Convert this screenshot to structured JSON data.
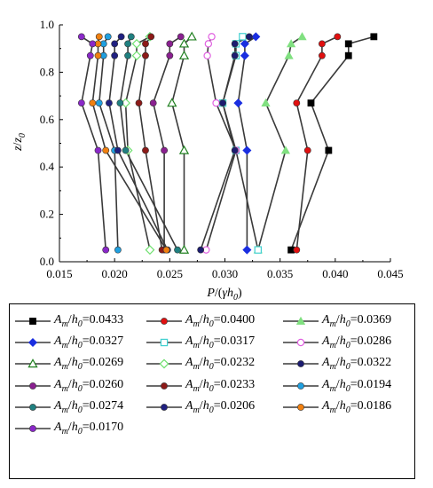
{
  "chart_data": {
    "type": "scatter",
    "xlabel": "P/(γh0)",
    "ylabel": "z/z0",
    "xlim": [
      0.015,
      0.045
    ],
    "ylim": [
      0.0,
      1.0
    ],
    "xticks": [
      "0.015",
      "0.020",
      "0.025",
      "0.030",
      "0.035",
      "0.040",
      "0.045"
    ],
    "yticks": [
      "0.0",
      "0.2",
      "0.4",
      "0.6",
      "0.8",
      "1.0"
    ],
    "grid": false,
    "legend_position": "below",
    "series": [
      {
        "name": "Am/h0=0.0433",
        "marker": "square",
        "color": "#000000",
        "x": [
          0.036,
          0.0394,
          0.0378,
          0.0412,
          0.0412,
          0.0435
        ],
        "y": [
          0.05,
          0.47,
          0.67,
          0.87,
          0.92,
          0.95
        ]
      },
      {
        "name": "Am/h0=0.0400",
        "marker": "circle",
        "color": "#e01010",
        "x": [
          0.0365,
          0.0375,
          0.0365,
          0.0388,
          0.0388,
          0.0402
        ],
        "y": [
          0.05,
          0.47,
          0.67,
          0.87,
          0.92,
          0.95
        ]
      },
      {
        "name": "Am/h0=0.0369",
        "marker": "triangle",
        "color": "#80e080",
        "x": [
          0.033,
          0.0355,
          0.0337,
          0.0358,
          0.036,
          0.037
        ],
        "y": [
          0.05,
          0.47,
          0.67,
          0.87,
          0.92,
          0.95
        ]
      },
      {
        "name": "Am/h0=0.0327",
        "marker": "diamond",
        "color": "#1a2ee0",
        "x": [
          0.032,
          0.032,
          0.0312,
          0.0318,
          0.0318,
          0.0328
        ],
        "y": [
          0.05,
          0.47,
          0.67,
          0.87,
          0.92,
          0.95
        ]
      },
      {
        "name": "Am/h0=0.0317",
        "marker": "square-open",
        "color": "#40d0d0",
        "x": [
          0.033,
          0.031,
          0.0298,
          0.031,
          0.031,
          0.0316
        ],
        "y": [
          0.05,
          0.47,
          0.67,
          0.87,
          0.92,
          0.95
        ]
      },
      {
        "name": "Am/h0=0.0286",
        "marker": "circle-open",
        "color": "#e060e0",
        "x": [
          0.0283,
          0.031,
          0.0292,
          0.0284,
          0.0285,
          0.0288
        ],
        "y": [
          0.05,
          0.47,
          0.67,
          0.87,
          0.92,
          0.95
        ]
      },
      {
        "name": "Am/h0=0.0269",
        "marker": "triangle-open",
        "color": "#208020",
        "x": [
          0.0263,
          0.0263,
          0.0252,
          0.0263,
          0.0263,
          0.027
        ],
        "y": [
          0.05,
          0.47,
          0.67,
          0.87,
          0.92,
          0.95
        ]
      },
      {
        "name": "Am/h0=0.0232",
        "marker": "diamond-open",
        "color": "#70e070",
        "x": [
          0.0232,
          0.0212,
          0.021,
          0.022,
          0.022,
          0.0232
        ],
        "y": [
          0.05,
          0.47,
          0.67,
          0.87,
          0.92,
          0.95
        ]
      },
      {
        "name": "Am/h0=0.0322",
        "marker": "circle",
        "color": "#1c1c70",
        "x": [
          0.0278,
          0.0309,
          0.0298,
          0.0309,
          0.0309,
          0.0322
        ],
        "y": [
          0.05,
          0.47,
          0.67,
          0.87,
          0.92,
          0.95
        ]
      },
      {
        "name": "Am/h0=0.0260",
        "marker": "circle",
        "color": "#8a2090",
        "x": [
          0.0245,
          0.0245,
          0.0235,
          0.025,
          0.025,
          0.026
        ],
        "y": [
          0.05,
          0.47,
          0.67,
          0.87,
          0.92,
          0.95
        ]
      },
      {
        "name": "Am/h0=0.0233",
        "marker": "circle",
        "color": "#8c1a18",
        "x": [
          0.0243,
          0.0228,
          0.0222,
          0.0228,
          0.0228,
          0.0233
        ],
        "y": [
          0.05,
          0.47,
          0.67,
          0.87,
          0.92,
          0.95
        ]
      },
      {
        "name": "Am/h0=0.0194",
        "marker": "circle",
        "color": "#20a0e0",
        "x": [
          0.0203,
          0.02,
          0.0186,
          0.019,
          0.019,
          0.0194
        ],
        "y": [
          0.05,
          0.47,
          0.67,
          0.87,
          0.92,
          0.95
        ]
      },
      {
        "name": "Am/h0=0.0274",
        "marker": "circle",
        "color": "#208080",
        "x": [
          0.0257,
          0.021,
          0.0205,
          0.0212,
          0.0212,
          0.0215
        ],
        "y": [
          0.05,
          0.47,
          0.67,
          0.87,
          0.92,
          0.95
        ]
      },
      {
        "name": "Am/h0=0.0206",
        "marker": "circle",
        "color": "#202080",
        "x": [
          0.0248,
          0.0203,
          0.0195,
          0.02,
          0.02,
          0.0206
        ],
        "y": [
          0.05,
          0.47,
          0.67,
          0.87,
          0.92,
          0.95
        ]
      },
      {
        "name": "Am/h0=0.0186",
        "marker": "circle",
        "color": "#f08010",
        "x": [
          0.0247,
          0.0192,
          0.018,
          0.0185,
          0.0185,
          0.0186
        ],
        "y": [
          0.05,
          0.47,
          0.67,
          0.87,
          0.92,
          0.95
        ]
      },
      {
        "name": "Am/h0=0.0170",
        "marker": "circle",
        "color": "#8a28c8",
        "x": [
          0.0192,
          0.0185,
          0.017,
          0.0178,
          0.018,
          0.017
        ],
        "y": [
          0.05,
          0.47,
          0.67,
          0.87,
          0.92,
          0.95
        ]
      }
    ]
  },
  "legend": [
    {
      "a": "A",
      "sub1": "m",
      "mid": "/",
      "h": "h",
      "sub2": "0",
      "value": "=0.0433"
    },
    {
      "a": "A",
      "sub1": "m",
      "mid": "/",
      "h": "h",
      "sub2": "0",
      "value": "=0.0400"
    },
    {
      "a": "A",
      "sub1": "m",
      "mid": "/",
      "h": "h",
      "sub2": "0",
      "value": "=0.0369"
    },
    {
      "a": "A",
      "sub1": "m",
      "mid": "/",
      "h": "h",
      "sub2": "0",
      "value": "=0.0327"
    },
    {
      "a": "A",
      "sub1": "m",
      "mid": "/",
      "h": "h",
      "sub2": "0",
      "value": "=0.0317"
    },
    {
      "a": "A",
      "sub1": "m",
      "mid": "/",
      "h": "h",
      "sub2": "0",
      "value": "=0.0286"
    },
    {
      "a": "A",
      "sub1": "m",
      "mid": "/",
      "h": "h",
      "sub2": "0",
      "value": "=0.0269"
    },
    {
      "a": "A",
      "sub1": "m",
      "mid": "/",
      "h": "h",
      "sub2": "0",
      "value": "=0.0232"
    },
    {
      "a": "A",
      "sub1": "m",
      "mid": "/",
      "h": "h",
      "sub2": "0",
      "value": "=0.0322"
    },
    {
      "a": "A",
      "sub1": "m",
      "mid": "/",
      "h": "h",
      "sub2": "0",
      "value": "=0.0260"
    },
    {
      "a": "A",
      "sub1": "m",
      "mid": "/",
      "h": "h",
      "sub2": "0",
      "value": "=0.0233"
    },
    {
      "a": "A",
      "sub1": "m",
      "mid": "/",
      "h": "h",
      "sub2": "0",
      "value": "=0.0194"
    },
    {
      "a": "A",
      "sub1": "m",
      "mid": "/",
      "h": "h",
      "sub2": "0",
      "value": "=0.0274"
    },
    {
      "a": "A",
      "sub1": "m",
      "mid": "/",
      "h": "h",
      "sub2": "0",
      "value": "=0.0206"
    },
    {
      "a": "A",
      "sub1": "m",
      "mid": "/",
      "h": "h",
      "sub2": "0",
      "value": "=0.0186"
    },
    {
      "a": "A",
      "sub1": "m",
      "mid": "/",
      "h": "h",
      "sub2": "0",
      "value": "=0.0170"
    }
  ],
  "axis_titles": {
    "x_parts": [
      "P",
      "/(",
      "γ",
      "h",
      "0",
      ")"
    ],
    "y_parts": [
      "z",
      "/",
      "z",
      "0"
    ]
  }
}
